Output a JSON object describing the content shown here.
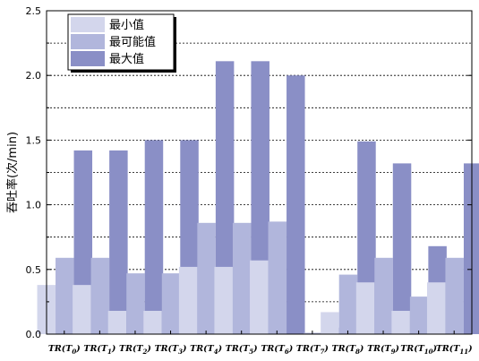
{
  "chart_data": {
    "type": "bar",
    "title": "",
    "xlabel": "",
    "ylabel": "吞吐率(次/min)",
    "ylim": [
      0,
      2.5
    ],
    "yticks": [
      "0.0",
      "0.5",
      "1.0",
      "1.5",
      "2.0",
      "2.5"
    ],
    "grid": "horizontal dashed",
    "legend_position": "top-left",
    "categories": [
      {
        "base": "TR(T",
        "sub": "0",
        "end": ")"
      },
      {
        "base": "TR(T",
        "sub": "1",
        "end": ")"
      },
      {
        "base": "TR(T",
        "sub": "2",
        "end": ")"
      },
      {
        "base": "TR(T",
        "sub": "3",
        "end": ")"
      },
      {
        "base": "TR(T",
        "sub": "4",
        "end": ")"
      },
      {
        "base": "TR(T",
        "sub": "5",
        "end": ")"
      },
      {
        "base": "TR(T",
        "sub": "6",
        "end": ")"
      },
      {
        "base": "TR(T",
        "sub": "7",
        "end": ")"
      },
      {
        "base": "TR(T",
        "sub": "8",
        "end": ")"
      },
      {
        "base": "TR(T",
        "sub": "9",
        "end": ")"
      },
      {
        "base": "TR(T",
        "sub": "10",
        "end": ")"
      },
      {
        "base": "TR(T",
        "sub": "11",
        "end": ")"
      }
    ],
    "series": [
      {
        "name": "最小值",
        "color": "#d3d6ec",
        "values": [
          0.38,
          0.38,
          0.18,
          0.18,
          0.52,
          0.52,
          0.57,
          0.0,
          0.17,
          0.4,
          0.18,
          0.4
        ]
      },
      {
        "name": "最可能值",
        "color": "#b1b6dc",
        "values": [
          0.59,
          0.59,
          0.47,
          0.47,
          0.86,
          0.86,
          0.87,
          0.01,
          0.46,
          0.59,
          0.29,
          0.59
        ]
      },
      {
        "name": "最大值",
        "color": "#8a8fc6",
        "values": [
          1.42,
          1.42,
          1.5,
          1.5,
          2.11,
          2.11,
          2.0,
          0.05,
          1.49,
          1.32,
          0.68,
          1.32
        ]
      }
    ]
  }
}
